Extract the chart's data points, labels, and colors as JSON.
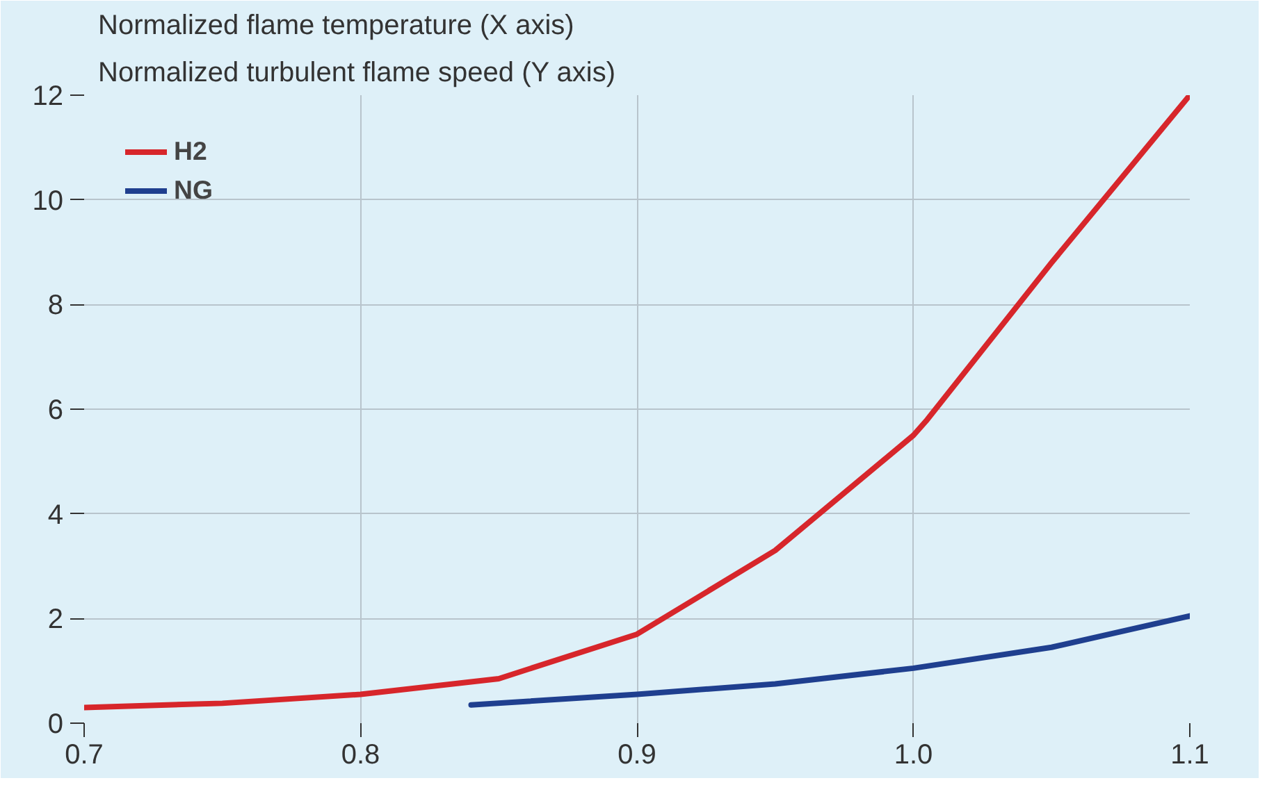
{
  "chart_data": {
    "type": "line",
    "title": "Normalized flame temperature (X axis)",
    "subtitle": "Normalized turbulent flame speed (Y axis)",
    "series": [
      {
        "name": "H2",
        "color": "#d7262b",
        "x": [
          0.7,
          0.75,
          0.8,
          0.85,
          0.9,
          0.95,
          1.0,
          1.005,
          1.05,
          1.1
        ],
        "values": [
          0.3,
          0.38,
          0.55,
          0.85,
          1.7,
          3.3,
          5.5,
          5.8,
          8.8,
          12
        ]
      },
      {
        "name": "NG",
        "color": "#1f3f8f",
        "x": [
          0.84,
          0.9,
          0.95,
          1.0,
          1.05,
          1.1
        ],
        "values": [
          0.35,
          0.55,
          0.75,
          1.05,
          1.45,
          2.05
        ]
      }
    ],
    "xlim": [
      0.7,
      1.1
    ],
    "xticks": [
      {
        "value": 0.7,
        "label": "0.7"
      },
      {
        "value": 0.8,
        "label": "0.8"
      },
      {
        "value": 0.9,
        "label": "0.9"
      },
      {
        "value": 1.0,
        "label": "1.0"
      },
      {
        "value": 1.1,
        "label": "1.1"
      }
    ],
    "ylim": [
      0,
      12
    ],
    "yticks": [
      0,
      2,
      4,
      6,
      8,
      10,
      12
    ],
    "grid": true,
    "legend": "top left",
    "marker": "none",
    "line_style": "solid"
  }
}
